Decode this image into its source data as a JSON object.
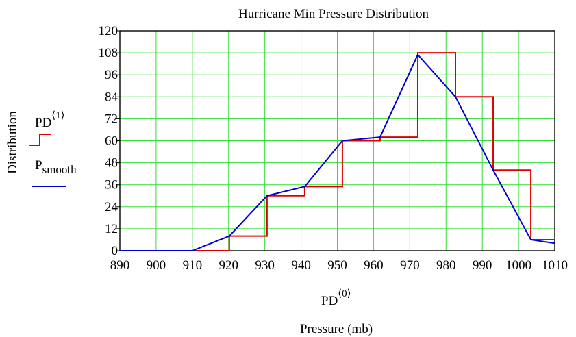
{
  "chart_data": {
    "type": "line",
    "title": "Hurricane Min Pressure Distribution",
    "xlabel": "Pressure (mb)",
    "x_var": "PD",
    "x_var_index": "⟨0⟩",
    "ylabel": "Distribution",
    "xlim": [
      890,
      1010
    ],
    "ylim": [
      0,
      120
    ],
    "x_ticks": [
      "890",
      "900",
      "910",
      "920",
      "930",
      "940",
      "950",
      "960",
      "970",
      "980",
      "990",
      "1000",
      "1010"
    ],
    "y_ticks": [
      "0",
      "12",
      "24",
      "36",
      "48",
      "60",
      "72",
      "84",
      "96",
      "108",
      "120"
    ],
    "grid": true,
    "legend_position": "left",
    "series": [
      {
        "name": "PD",
        "name_index": "⟨1⟩",
        "style": "step",
        "color": "#dd0000",
        "x": [
          890,
          910,
          920.2,
          930.6,
          941,
          951.4,
          961.8,
          972.2,
          982.6,
          993,
          1003.4,
          1010
        ],
        "y": [
          0,
          0,
          8,
          30,
          35,
          60,
          62,
          108,
          84,
          44,
          6,
          6
        ]
      },
      {
        "name": "P",
        "name_sub": "smooth",
        "style": "line",
        "color": "#0000cc",
        "x": [
          890,
          910,
          920.2,
          930.6,
          941,
          951.4,
          961.8,
          972.2,
          982.6,
          993,
          1003.4,
          1010
        ],
        "y": [
          0,
          0,
          8,
          30,
          35,
          60,
          62,
          107,
          84,
          44,
          6,
          4
        ]
      }
    ]
  }
}
